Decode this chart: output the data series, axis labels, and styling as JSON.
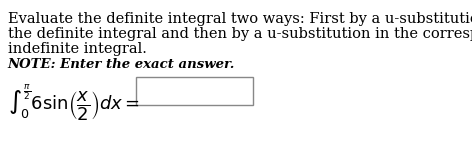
{
  "background_color": "#ffffff",
  "main_text_lines": [
    "Evaluate the definite integral two ways: First by a u-substitution in",
    "the definite integral and then by a u-substitution in the corresponding",
    "indefinite integral."
  ],
  "note_text": "NOTE: Enter the exact answer.",
  "integral_prefix": "$\\int_0^{\\frac{\\pi}{2}} 6\\sin\\!\\left(\\dfrac{x}{2}\\right)dx = $",
  "text_color": "#000000",
  "font_size_main": 10.5,
  "font_size_note": 9.5,
  "font_size_integral": 13
}
